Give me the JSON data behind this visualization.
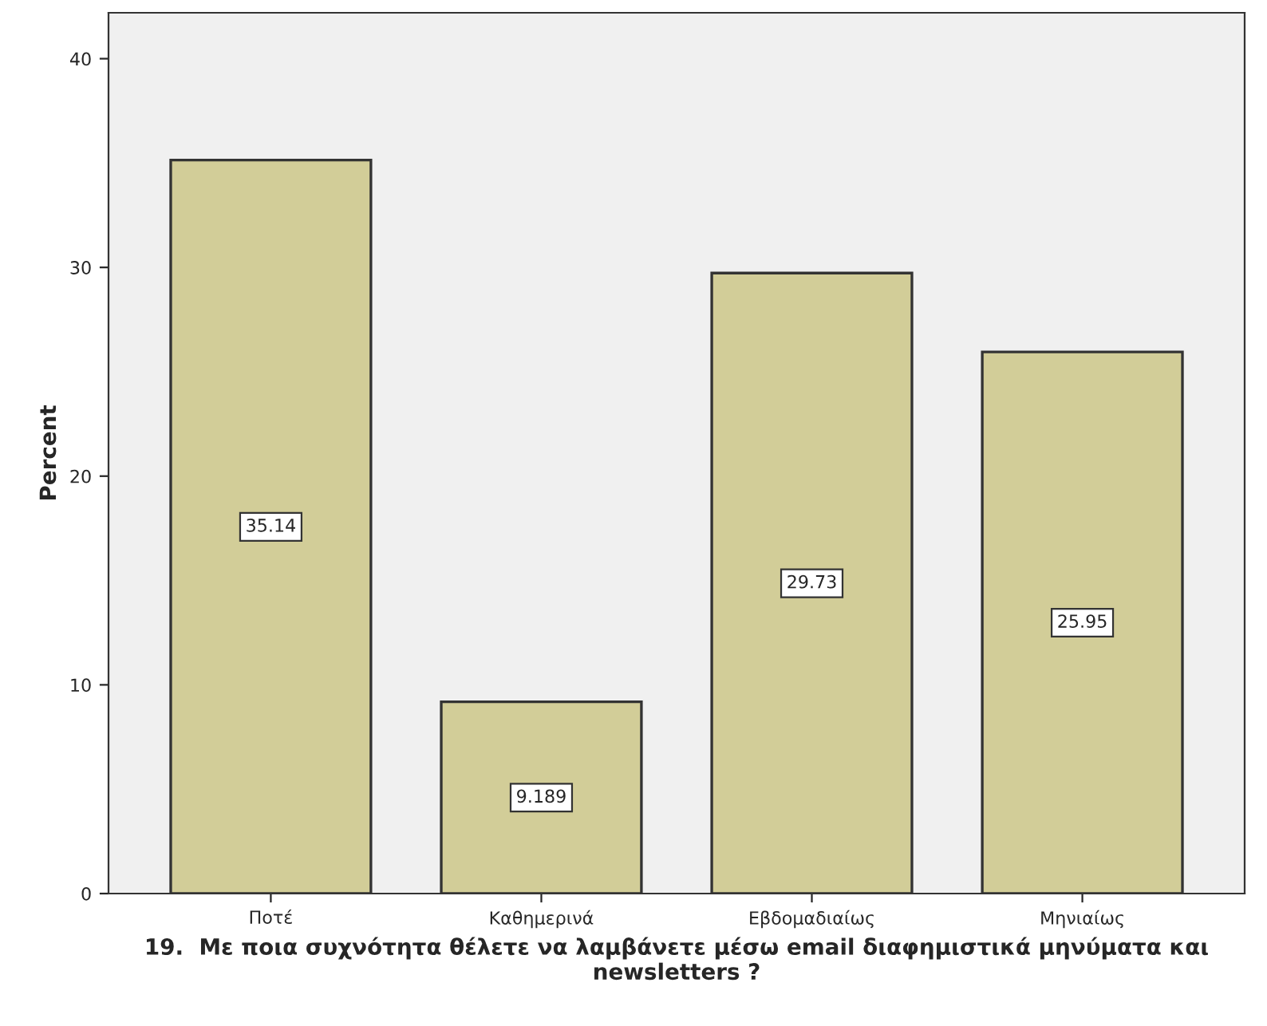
{
  "chart_data": {
    "type": "bar",
    "xlabel": "19.  Με ποια συχνότητα θέλετε να λαμβάνετε μέσω email διαφημιστικά μηνύματα και newsletters ?",
    "ylabel": "Percent",
    "categories": [
      "Ποτέ",
      "Καθημερινά",
      "Εβδομαδιαίως",
      "Μηνιαίως"
    ],
    "values": [
      35.14,
      9.189,
      29.73,
      25.95
    ],
    "color": "#d2cd98",
    "ylim": [
      0,
      42.2
    ],
    "yticks": [
      0,
      10,
      20,
      30,
      40
    ],
    "data_labels": true,
    "grid": false
  }
}
